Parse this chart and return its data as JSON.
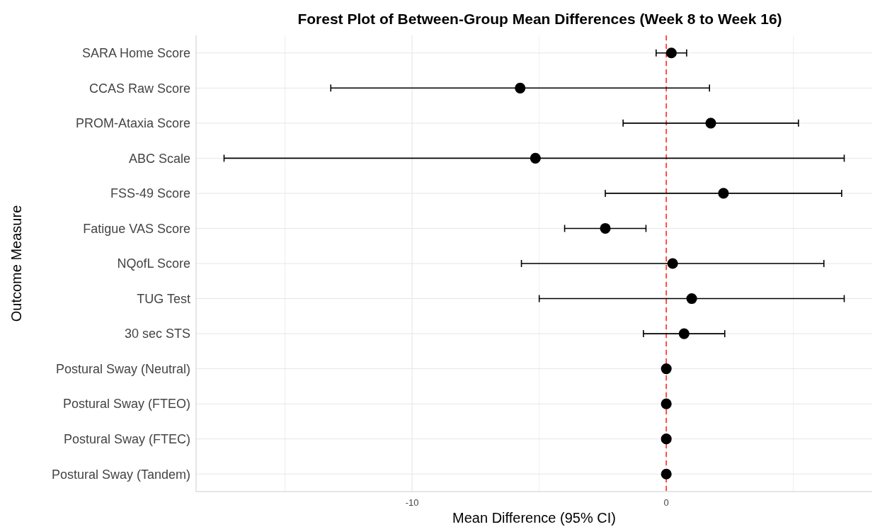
{
  "chart_data": {
    "type": "scatter",
    "orientation": "horizontal",
    "title": "Forest Plot of Between-Group Mean Differences (Week 8 to Week 16)",
    "xlabel": "Mean Difference (95% CI)",
    "ylabel": "Outcome Measure",
    "categories": [
      "SARA Home Score",
      "CCAS Raw Score",
      "PROM-Ataxia Score",
      "ABC Scale",
      "FSS-49 Score",
      "Fatigue VAS Score",
      "NQofL Score",
      "TUG Test",
      "30 sec STS",
      "Postural Sway (Neutral)",
      "Postural Sway (FTEO)",
      "Postural Sway (FTEC)",
      "Postural Sway (Tandem)"
    ],
    "color": "#000000",
    "values": [
      0.2,
      -5.75,
      1.75,
      -5.15,
      2.25,
      -2.4,
      0.25,
      1.0,
      0.7,
      0,
      0,
      0,
      0
    ],
    "errors": [
      [
        -0.4,
        0.8
      ],
      [
        -13.2,
        1.7
      ],
      [
        -1.7,
        5.2
      ],
      [
        -17.4,
        7.0
      ],
      [
        -2.4,
        6.9
      ],
      [
        -4.0,
        -0.8
      ],
      [
        -5.7,
        6.2
      ],
      [
        -5.0,
        7.0
      ],
      [
        -0.9,
        2.3
      ],
      null,
      null,
      null,
      null
    ],
    "xlim": [
      -18.5,
      8.1
    ],
    "xticks": [
      {
        "value": -15,
        "label": null
      },
      -10,
      {
        "value": -5,
        "label": null
      },
      0,
      {
        "value": 5,
        "label": null
      }
    ],
    "ref_lines": [
      {
        "axis": "x",
        "value": 0,
        "color": "#ff3b30",
        "line_style": "dashed"
      }
    ],
    "grid": true,
    "marker": "circle"
  }
}
